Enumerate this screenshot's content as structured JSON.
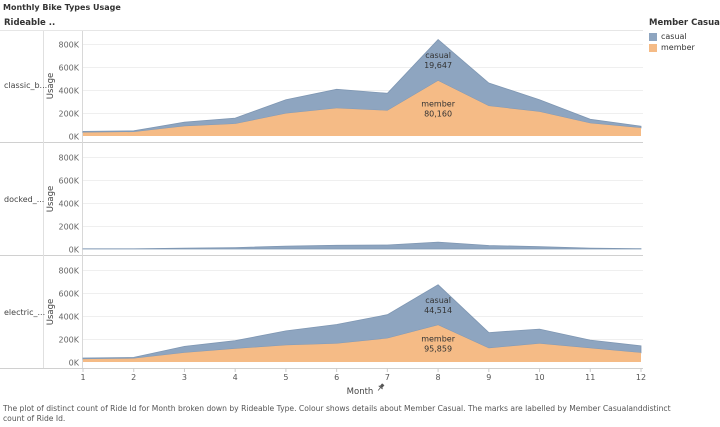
{
  "title": "Monthly Bike Types Usage",
  "row_header": "Rideable ..",
  "legend": {
    "title": "Member Casual",
    "items": [
      {
        "name": "casual",
        "color": "#8ea5c0"
      },
      {
        "name": "member",
        "color": "#f5bb86"
      }
    ]
  },
  "x_axis": {
    "label": "Month",
    "pin_icon": "pin-icon",
    "ticks": [
      "1",
      "2",
      "3",
      "4",
      "5",
      "6",
      "7",
      "8",
      "9",
      "10",
      "11",
      "12"
    ]
  },
  "caption": "The plot of distinct count of Ride Id for Month broken down by Rideable Type.  Colour shows details about Member Casual.  The marks are labelled by Member Casualanddistinct count of Ride Id.",
  "chart_data": {
    "type": "area",
    "stacked": true,
    "x": [
      1,
      2,
      3,
      4,
      5,
      6,
      7,
      8,
      9,
      10,
      11,
      12
    ],
    "ylabel": "Usage",
    "xlabel": "Month",
    "ylim": [
      0,
      850000
    ],
    "yticks": [
      "0K",
      "200K",
      "400K",
      "600K",
      "800K"
    ],
    "ytick_values": [
      0,
      200000,
      400000,
      600000,
      800000
    ],
    "legend_placement": "right",
    "panels": [
      {
        "row_label": "classic_b...",
        "series": [
          {
            "name": "member",
            "values": [
              30000,
              35000,
              85000,
              105000,
              195000,
              240000,
              220000,
              480000,
              260000,
              210000,
              110000,
              70000
            ]
          },
          {
            "name": "casual",
            "values": [
              10000,
              10000,
              35000,
              50000,
              120000,
              165000,
              150000,
              356000,
              200000,
              105000,
              35000,
              15000
            ]
          }
        ],
        "labels": [
          {
            "series": "casual",
            "text": "casual",
            "value": "19,647"
          },
          {
            "series": "member",
            "text": "member",
            "value": "80,160"
          }
        ]
      },
      {
        "row_label": "docked_...",
        "series": [
          {
            "name": "member",
            "values": [
              0,
              0,
              0,
              0,
              0,
              0,
              0,
              0,
              0,
              0,
              0,
              0
            ]
          },
          {
            "name": "casual",
            "values": [
              2000,
              2000,
              8000,
              12000,
              25000,
              32000,
              35000,
              60000,
              30000,
              20000,
              8000,
              3000
            ]
          }
        ],
        "labels": []
      },
      {
        "row_label": "electric_...",
        "series": [
          {
            "name": "member",
            "values": [
              25000,
              30000,
              80000,
              115000,
              145000,
              160000,
              205000,
              320000,
              120000,
              160000,
              120000,
              80000
            ]
          },
          {
            "name": "casual",
            "values": [
              10000,
              10000,
              55000,
              70000,
              125000,
              165000,
              205000,
              350000,
              135000,
              125000,
              70000,
              60000
            ]
          }
        ],
        "labels": [
          {
            "series": "casual",
            "text": "casual",
            "value": "44,514"
          },
          {
            "series": "member",
            "text": "member",
            "value": "95,859"
          }
        ]
      }
    ]
  }
}
